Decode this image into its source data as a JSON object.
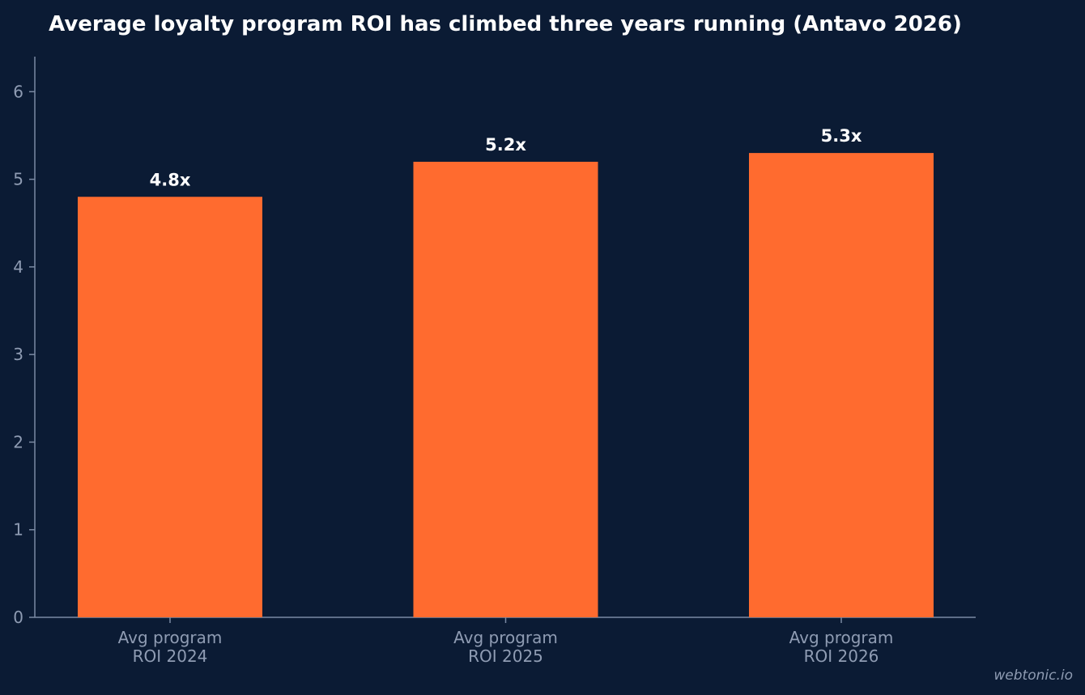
{
  "chart_data": {
    "type": "bar",
    "title": "Average loyalty program ROI has climbed three years running (Antavo 2026)",
    "categories": [
      [
        "Avg program",
        "ROI 2024"
      ],
      [
        "Avg program",
        "ROI 2025"
      ],
      [
        "Avg program",
        "ROI 2026"
      ]
    ],
    "values": [
      4.8,
      5.2,
      5.3
    ],
    "data_labels": [
      "4.8x",
      "5.2x",
      "5.3x"
    ],
    "xlabel": "",
    "ylabel": "",
    "ylim": [
      0,
      6.4
    ],
    "yticks": [
      0,
      1,
      2,
      3,
      4,
      5,
      6
    ],
    "grid": false,
    "legend": "none"
  },
  "colors": {
    "background": "#0b1b34",
    "bar": "#ff6b2f",
    "axis": "#7b8aa3",
    "tick_text": "#8f9cb3",
    "title_text": "#ffffff"
  },
  "watermark": "webtonic.io"
}
